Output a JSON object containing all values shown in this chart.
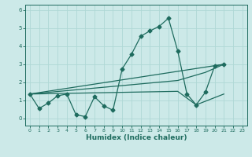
{
  "xlabel": "Humidex (Indice chaleur)",
  "xlim": [
    -0.5,
    23.5
  ],
  "ylim": [
    -0.4,
    6.3
  ],
  "xticks": [
    0,
    1,
    2,
    3,
    4,
    5,
    6,
    7,
    8,
    9,
    10,
    11,
    12,
    13,
    14,
    15,
    16,
    17,
    18,
    19,
    20,
    21,
    22,
    23
  ],
  "yticks": [
    0,
    1,
    2,
    3,
    4,
    5,
    6
  ],
  "bg_color": "#cce9e8",
  "grid_color": "#afd8d5",
  "line_color": "#1e6b5e",
  "zigzag_x": [
    0,
    1,
    2,
    3,
    4,
    5,
    6,
    7,
    8,
    9,
    10,
    11,
    12,
    13,
    14,
    15,
    16,
    17,
    18,
    19,
    20,
    21
  ],
  "zigzag_y": [
    1.35,
    0.55,
    0.85,
    1.25,
    1.35,
    0.2,
    0.1,
    1.2,
    0.7,
    0.45,
    2.75,
    3.55,
    4.55,
    4.85,
    5.1,
    5.55,
    3.75,
    1.35,
    0.75,
    1.45,
    2.9,
    3.0
  ],
  "line2_x": [
    0,
    21
  ],
  "line2_y": [
    1.35,
    3.0
  ],
  "line3_x": [
    0,
    16,
    19,
    21
  ],
  "line3_y": [
    1.35,
    2.1,
    2.55,
    3.0
  ],
  "line4_x": [
    0,
    16,
    18,
    21
  ],
  "line4_y": [
    1.35,
    1.5,
    0.75,
    1.35
  ]
}
